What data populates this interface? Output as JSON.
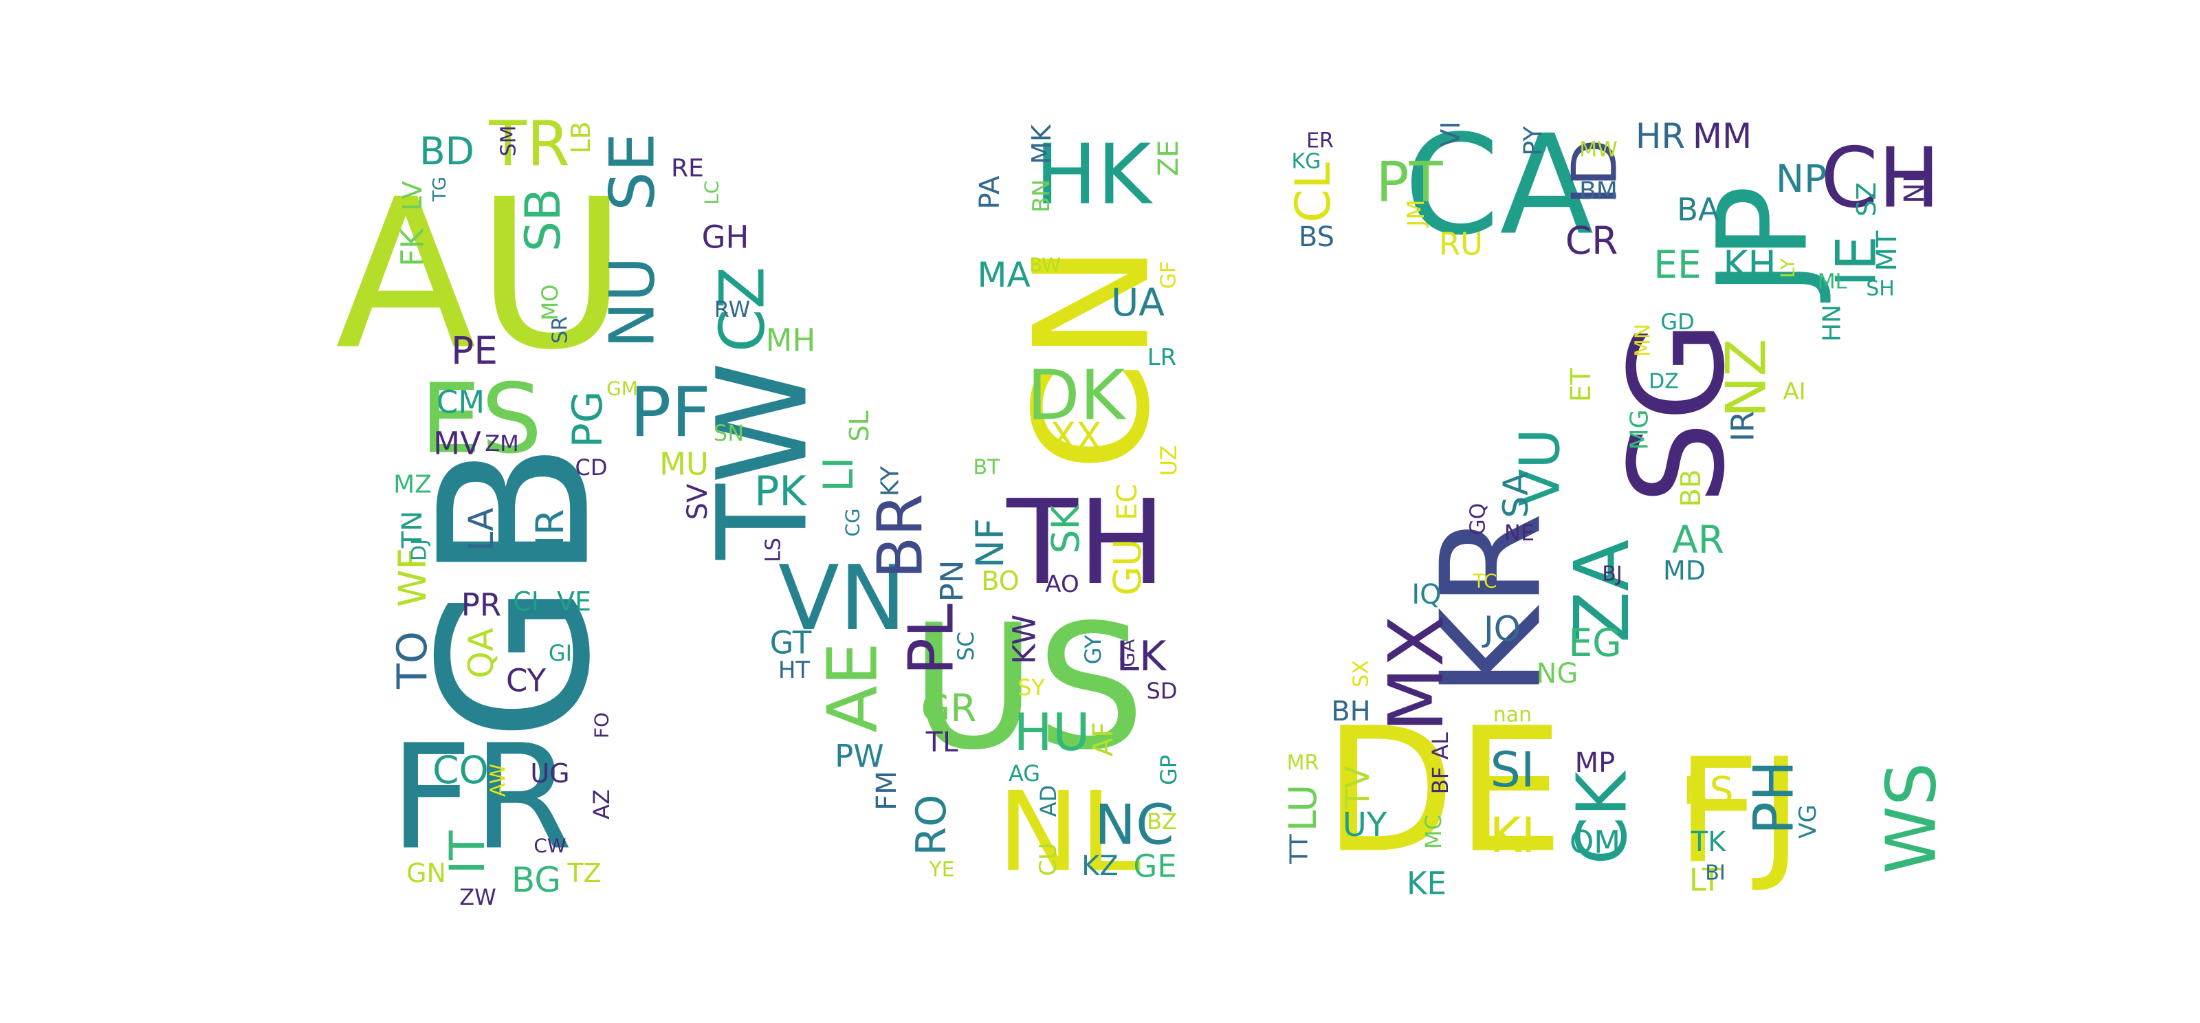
{
  "palette": {
    "dark_purple": "#482878",
    "indigo": "#3e4a89",
    "blue": "#31688e",
    "teal": "#26828e",
    "sea_green": "#1f9e89",
    "green": "#35b779",
    "light_green": "#6ece58",
    "lime": "#b5de2b",
    "yellow": "#dde318"
  },
  "words": [
    {
      "text": "AU",
      "color": "lime"
    },
    {
      "text": "GB",
      "color": "teal"
    },
    {
      "text": "FR",
      "color": "teal"
    },
    {
      "text": "US",
      "color": "light_green"
    },
    {
      "text": "CN",
      "color": "yellow"
    },
    {
      "text": "NL",
      "color": "yellow"
    },
    {
      "text": "TW",
      "color": "teal"
    },
    {
      "text": "TH",
      "color": "dark_purple"
    },
    {
      "text": "CA",
      "color": "sea_green"
    },
    {
      "text": "DE",
      "color": "yellow"
    },
    {
      "text": "FJ",
      "color": "yellow"
    },
    {
      "text": "KR",
      "color": "indigo"
    },
    {
      "text": "SG",
      "color": "dark_purple"
    },
    {
      "text": "JP",
      "color": "sea_green"
    },
    {
      "text": "HK",
      "color": "sea_green"
    },
    {
      "text": "ES",
      "color": "light_green"
    },
    {
      "text": "NU",
      "color": "teal"
    },
    {
      "text": "SE",
      "color": "teal"
    },
    {
      "text": "PF",
      "color": "teal"
    },
    {
      "text": "CZ",
      "color": "sea_green"
    },
    {
      "text": "VN",
      "color": "teal"
    },
    {
      "text": "AE",
      "color": "light_green"
    },
    {
      "text": "BR",
      "color": "indigo"
    },
    {
      "text": "PL",
      "color": "dark_purple"
    },
    {
      "text": "DK",
      "color": "light_green"
    },
    {
      "text": "MX",
      "color": "dark_purple"
    },
    {
      "text": "ZA",
      "color": "sea_green"
    },
    {
      "text": "CK",
      "color": "sea_green"
    },
    {
      "text": "WS",
      "color": "green"
    },
    {
      "text": "PH",
      "color": "teal"
    },
    {
      "text": "ID",
      "color": "indigo"
    },
    {
      "text": "CH",
      "color": "dark_purple"
    },
    {
      "text": "IE",
      "color": "sea_green"
    },
    {
      "text": "NZ",
      "color": "lime"
    },
    {
      "text": "VU",
      "color": "sea_green"
    },
    {
      "text": "PT",
      "color": "light_green"
    },
    {
      "text": "CL",
      "color": "yellow"
    },
    {
      "text": "TR",
      "color": "lime"
    },
    {
      "text": "BD",
      "color": "sea_green"
    },
    {
      "text": "SB",
      "color": "green"
    },
    {
      "text": "PG",
      "color": "sea_green"
    },
    {
      "text": "PE",
      "color": "dark_purple"
    },
    {
      "text": "CM",
      "color": "sea_green"
    },
    {
      "text": "MV",
      "color": "dark_purple"
    },
    {
      "text": "ZM",
      "color": "dark_purple"
    },
    {
      "text": "LA",
      "color": "blue"
    },
    {
      "text": "NR",
      "color": "teal"
    },
    {
      "text": "CD",
      "color": "dark_purple"
    },
    {
      "text": "PR",
      "color": "dark_purple"
    },
    {
      "text": "CI",
      "color": "sea_green"
    },
    {
      "text": "VE",
      "color": "sea_green"
    },
    {
      "text": "QA",
      "color": "lime"
    },
    {
      "text": "GI",
      "color": "sea_green"
    },
    {
      "text": "CY",
      "color": "dark_purple"
    },
    {
      "text": "CO",
      "color": "sea_green"
    },
    {
      "text": "UG",
      "color": "dark_purple"
    },
    {
      "text": "IT",
      "color": "green"
    },
    {
      "text": "BG",
      "color": "green"
    },
    {
      "text": "ZW",
      "color": "dark_purple"
    },
    {
      "text": "GN",
      "color": "lime"
    },
    {
      "text": "TZ",
      "color": "lime"
    },
    {
      "text": "CW",
      "color": "dark_purple"
    },
    {
      "text": "AZ",
      "color": "dark_purple"
    },
    {
      "text": "AW",
      "color": "yellow"
    },
    {
      "text": "FO",
      "color": "dark_purple"
    },
    {
      "text": "TO",
      "color": "blue"
    },
    {
      "text": "WF",
      "color": "lime"
    },
    {
      "text": "TN",
      "color": "sea_green"
    },
    {
      "text": "MZ",
      "color": "green"
    },
    {
      "text": "DJ",
      "color": "sea_green"
    },
    {
      "text": "FK",
      "color": "light_green"
    },
    {
      "text": "LV",
      "color": "light_green"
    },
    {
      "text": "TG",
      "color": "teal"
    },
    {
      "text": "SM",
      "color": "dark_purple"
    },
    {
      "text": "LB",
      "color": "lime"
    },
    {
      "text": "RE",
      "color": "dark_purple"
    },
    {
      "text": "LC",
      "color": "light_green"
    },
    {
      "text": "GH",
      "color": "dark_purple"
    },
    {
      "text": "RW",
      "color": "blue"
    },
    {
      "text": "MH",
      "color": "light_green"
    },
    {
      "text": "SR",
      "color": "blue"
    },
    {
      "text": "MO",
      "color": "light_green"
    },
    {
      "text": "GM",
      "color": "lime"
    },
    {
      "text": "MU",
      "color": "lime"
    },
    {
      "text": "SN",
      "color": "light_green"
    },
    {
      "text": "SV",
      "color": "dark_purple"
    },
    {
      "text": "PK",
      "color": "sea_green"
    },
    {
      "text": "LI",
      "color": "green"
    },
    {
      "text": "KY",
      "color": "blue"
    },
    {
      "text": "SL",
      "color": "light_green"
    },
    {
      "text": "CG",
      "color": "teal"
    },
    {
      "text": "LS",
      "color": "dark_purple"
    },
    {
      "text": "GT",
      "color": "teal"
    },
    {
      "text": "HT",
      "color": "blue"
    },
    {
      "text": "PW",
      "color": "teal"
    },
    {
      "text": "FM",
      "color": "blue"
    },
    {
      "text": "RO",
      "color": "teal"
    },
    {
      "text": "YE",
      "color": "lime"
    },
    {
      "text": "GR",
      "color": "light_green"
    },
    {
      "text": "TL",
      "color": "dark_purple"
    },
    {
      "text": "SC",
      "color": "teal"
    },
    {
      "text": "PN",
      "color": "blue"
    },
    {
      "text": "BO",
      "color": "lime"
    },
    {
      "text": "NF",
      "color": "teal"
    },
    {
      "text": "KW",
      "color": "dark_purple"
    },
    {
      "text": "HU",
      "color": "green"
    },
    {
      "text": "SY",
      "color": "yellow"
    },
    {
      "text": "AF",
      "color": "lime"
    },
    {
      "text": "AG",
      "color": "sea_green"
    },
    {
      "text": "AD",
      "color": "teal"
    },
    {
      "text": "CU",
      "color": "lime"
    },
    {
      "text": "KZ",
      "color": "teal"
    },
    {
      "text": "NC",
      "color": "teal"
    },
    {
      "text": "GE",
      "color": "green"
    },
    {
      "text": "BZ",
      "color": "lime"
    },
    {
      "text": "GP",
      "color": "sea_green"
    },
    {
      "text": "GY",
      "color": "teal"
    },
    {
      "text": "GA",
      "color": "dark_purple"
    },
    {
      "text": "LK",
      "color": "dark_purple"
    },
    {
      "text": "SD",
      "color": "dark_purple"
    },
    {
      "text": "GU",
      "color": "yellow"
    },
    {
      "text": "EC",
      "color": "yellow"
    },
    {
      "text": "SK",
      "color": "green"
    },
    {
      "text": "AO",
      "color": "dark_purple"
    },
    {
      "text": "BT",
      "color": "light_green"
    },
    {
      "text": "UZ",
      "color": "yellow"
    },
    {
      "text": "LR",
      "color": "sea_green"
    },
    {
      "text": "XX",
      "color": "yellow"
    },
    {
      "text": "UA",
      "color": "teal"
    },
    {
      "text": "GF",
      "color": "yellow"
    },
    {
      "text": "ZE",
      "color": "light_green"
    },
    {
      "text": "MK",
      "color": "blue"
    },
    {
      "text": "BN",
      "color": "light_green"
    },
    {
      "text": "PA",
      "color": "blue"
    },
    {
      "text": "MA",
      "color": "sea_green"
    },
    {
      "text": "BW",
      "color": "lime"
    },
    {
      "text": "ER",
      "color": "dark_purple"
    },
    {
      "text": "KG",
      "color": "sea_green"
    },
    {
      "text": "BS",
      "color": "blue"
    },
    {
      "text": "VI",
      "color": "blue"
    },
    {
      "text": "JM",
      "color": "yellow"
    },
    {
      "text": "RU",
      "color": "yellow"
    },
    {
      "text": "PY",
      "color": "blue"
    },
    {
      "text": "MW",
      "color": "lime"
    },
    {
      "text": "BM",
      "color": "blue"
    },
    {
      "text": "CR",
      "color": "dark_purple"
    },
    {
      "text": "HR",
      "color": "blue"
    },
    {
      "text": "MM",
      "color": "dark_purple"
    },
    {
      "text": "NP",
      "color": "teal"
    },
    {
      "text": "BA",
      "color": "teal"
    },
    {
      "text": "EE",
      "color": "green"
    },
    {
      "text": "KH",
      "color": "sea_green"
    },
    {
      "text": "LY",
      "color": "lime"
    },
    {
      "text": "ML",
      "color": "green"
    },
    {
      "text": "SZ",
      "color": "sea_green"
    },
    {
      "text": "NI",
      "color": "dark_purple"
    },
    {
      "text": "MT",
      "color": "sea_green"
    },
    {
      "text": "SH",
      "color": "sea_green"
    },
    {
      "text": "HN",
      "color": "sea_green"
    },
    {
      "text": "GD",
      "color": "sea_green"
    },
    {
      "text": "AI",
      "color": "lime"
    },
    {
      "text": "MN",
      "color": "yellow"
    },
    {
      "text": "DZ",
      "color": "sea_green"
    },
    {
      "text": "IR",
      "color": "blue"
    },
    {
      "text": "ET",
      "color": "lime"
    },
    {
      "text": "MG",
      "color": "green"
    },
    {
      "text": "BB",
      "color": "lime"
    },
    {
      "text": "AR",
      "color": "green"
    },
    {
      "text": "MD",
      "color": "teal"
    },
    {
      "text": "BJ",
      "color": "dark_purple"
    },
    {
      "text": "SA",
      "color": "teal"
    },
    {
      "text": "GQ",
      "color": "dark_purple"
    },
    {
      "text": "NE",
      "color": "dark_purple"
    },
    {
      "text": "IQ",
      "color": "teal"
    },
    {
      "text": "TC",
      "color": "yellow"
    },
    {
      "text": "JO",
      "color": "blue"
    },
    {
      "text": "EG",
      "color": "green"
    },
    {
      "text": "NG",
      "color": "light_green"
    },
    {
      "text": "SX",
      "color": "yellow"
    },
    {
      "text": "BH",
      "color": "blue"
    },
    {
      "text": "nan",
      "color": "lime"
    },
    {
      "text": "MR",
      "color": "lime"
    },
    {
      "text": "TT",
      "color": "blue"
    },
    {
      "text": "LU",
      "color": "light_green"
    },
    {
      "text": "TV",
      "color": "lime"
    },
    {
      "text": "UY",
      "color": "sea_green"
    },
    {
      "text": "BF",
      "color": "dark_purple"
    },
    {
      "text": "AL",
      "color": "dark_purple"
    },
    {
      "text": "MC",
      "color": "light_green"
    },
    {
      "text": "KE",
      "color": "sea_green"
    },
    {
      "text": "SI",
      "color": "teal"
    },
    {
      "text": "KI",
      "color": "yellow"
    },
    {
      "text": "MP",
      "color": "dark_purple"
    },
    {
      "text": "OM",
      "color": "sea_green"
    },
    {
      "text": "RS",
      "color": "yellow"
    },
    {
      "text": "TK",
      "color": "sea_green"
    },
    {
      "text": "LT",
      "color": "lime"
    },
    {
      "text": "BI",
      "color": "blue"
    },
    {
      "text": "VG",
      "color": "teal"
    }
  ]
}
